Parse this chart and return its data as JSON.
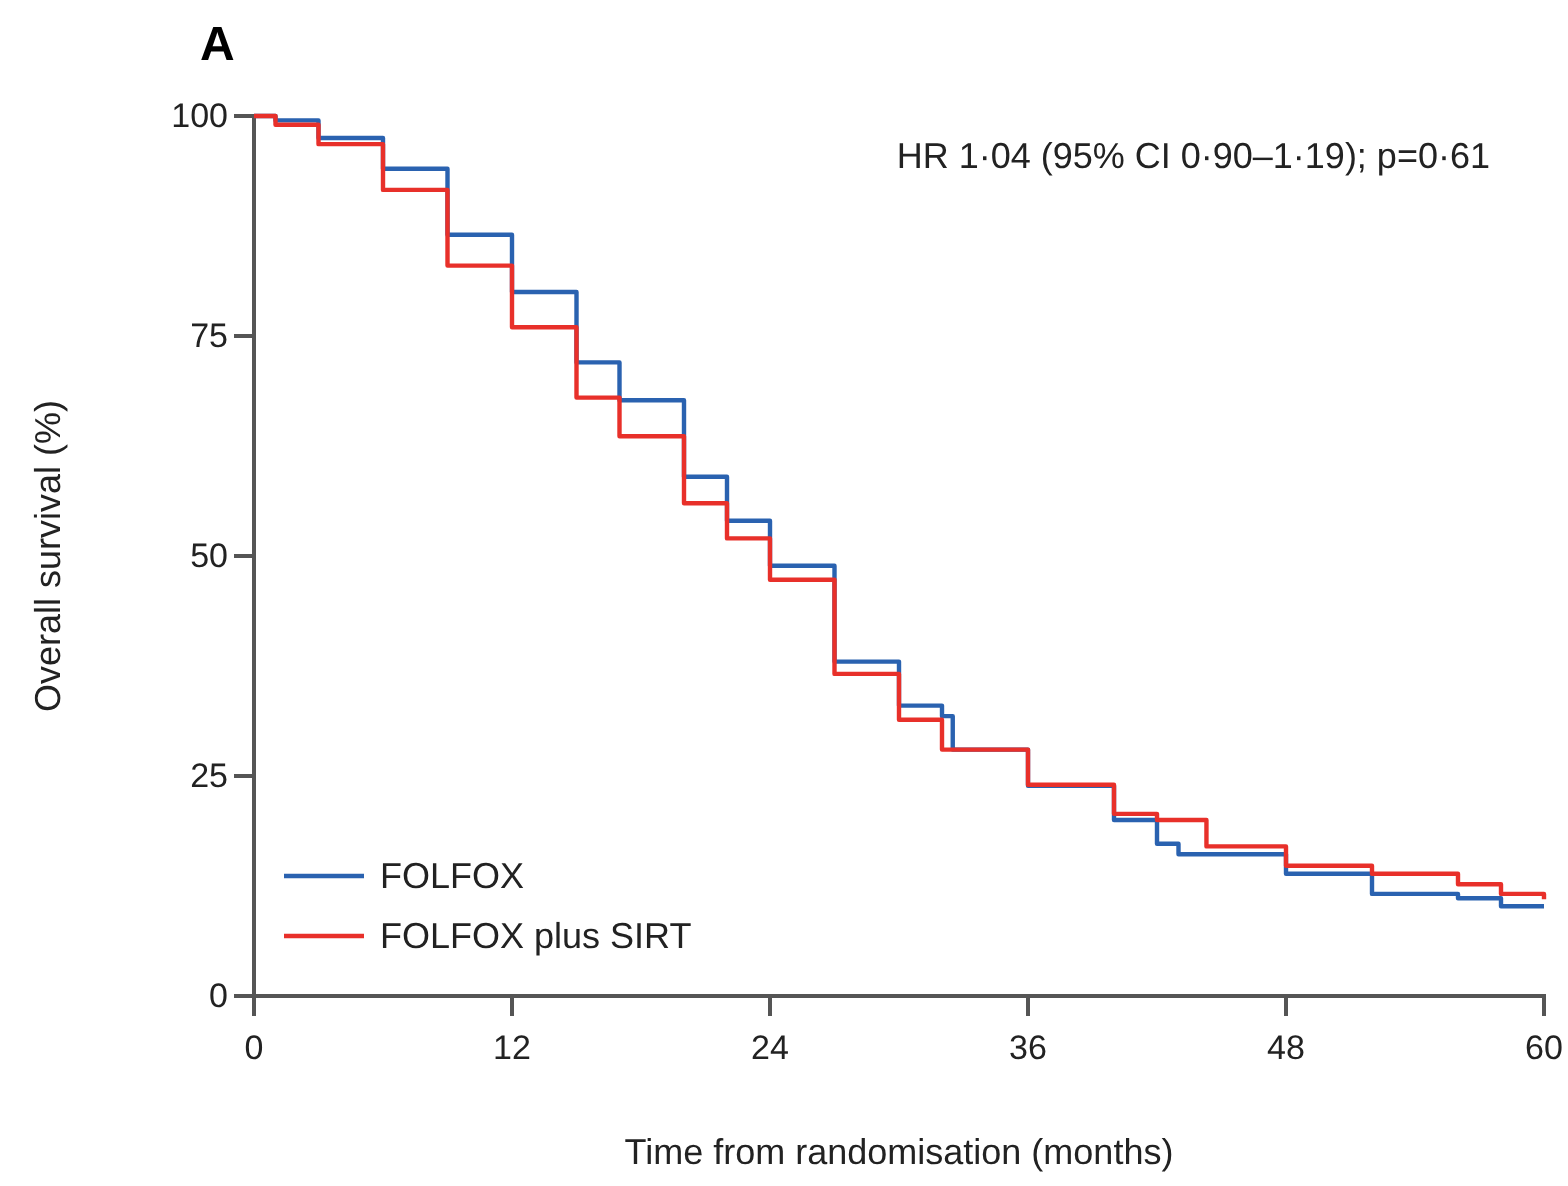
{
  "chart_data": {
    "type": "step",
    "title": "A",
    "xlabel": "Time from randomisation (months)",
    "ylabel": "Overall survival (%)",
    "annotations": [
      "HR 1·04 (95% CI 0·90–1·19); p=0·61"
    ],
    "xlim": [
      0,
      60
    ],
    "ylim": [
      0,
      100
    ],
    "xticks": [
      0,
      12,
      24,
      36,
      48,
      60
    ],
    "yticks": [
      0,
      25,
      50,
      75,
      100
    ],
    "grid": false,
    "legend": "bottom left",
    "marker": "none",
    "line_style": "solid",
    "series": [
      {
        "name": "FOLFOX",
        "color": "#2a62b0",
        "x": [
          0,
          1,
          3,
          6,
          9,
          12,
          15,
          17,
          20,
          22,
          24,
          27,
          30,
          32,
          32.5,
          36,
          40,
          42,
          43,
          48,
          52,
          56,
          58,
          60
        ],
        "values": [
          100,
          99.5,
          97.5,
          94,
          86.5,
          80,
          72,
          67.7,
          59,
          54,
          48.9,
          38,
          33,
          31.8,
          28,
          23.9,
          20,
          17.3,
          16.1,
          13.9,
          11.6,
          11.1,
          10.2,
          10.2
        ]
      },
      {
        "name": "FOLFOX plus SIRT",
        "color": "#e8302a",
        "x": [
          0,
          1,
          3,
          6,
          9,
          12,
          15,
          17,
          20,
          22,
          24,
          27,
          30,
          32,
          36,
          40,
          42,
          44.3,
          48,
          52,
          56,
          58,
          60
        ],
        "values": [
          100,
          99,
          96.8,
          91.6,
          83,
          76,
          68,
          63.6,
          56,
          52,
          47.3,
          36.6,
          31.4,
          28,
          24,
          20.7,
          20,
          17,
          14.8,
          13.9,
          12.7,
          11.6,
          11
        ]
      }
    ]
  }
}
